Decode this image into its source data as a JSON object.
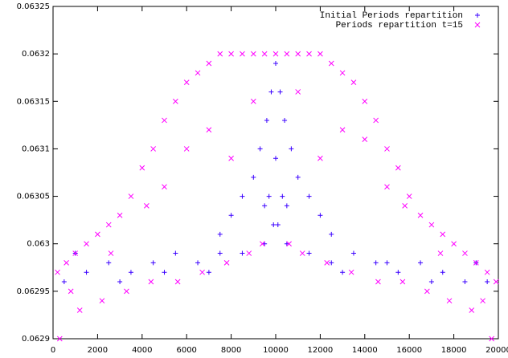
{
  "chart_data": {
    "type": "scatter",
    "xlim": [
      0,
      20000
    ],
    "ylim": [
      0.0629,
      0.06325
    ],
    "xticks": [
      0,
      2000,
      4000,
      6000,
      8000,
      10000,
      12000,
      14000,
      16000,
      18000,
      20000
    ],
    "yticks": [
      0.0629,
      0.06295,
      0.063,
      0.06305,
      0.0631,
      0.06315,
      0.0632,
      0.06325
    ],
    "legend": "top-right",
    "series": [
      {
        "name": "Initial Periods repartition",
        "color": "#3a00ff",
        "marker": "+",
        "x": [
          500,
          1500,
          2500,
          3500,
          4500,
          5500,
          6500,
          7500,
          8500,
          9500,
          10500,
          11500,
          12500,
          13500,
          14500,
          15500,
          16500,
          17500,
          18500,
          19500,
          1000,
          3000,
          5000,
          7000,
          13000,
          15000,
          17000,
          19000,
          7500,
          8000,
          8500,
          9000,
          9300,
          9600,
          9800,
          10000,
          10200,
          10400,
          10700,
          11000,
          11500,
          12000,
          12500,
          9700,
          10300,
          10000,
          9900,
          10100,
          9500,
          10500
        ],
        "values": [
          0.06296,
          0.06297,
          0.06298,
          0.06297,
          0.06298,
          0.06299,
          0.06298,
          0.06299,
          0.06299,
          0.063,
          0.063,
          0.06299,
          0.06298,
          0.06299,
          0.06298,
          0.06297,
          0.06298,
          0.06297,
          0.06296,
          0.06296,
          0.06299,
          0.06296,
          0.06297,
          0.06297,
          0.06297,
          0.06298,
          0.06296,
          0.06298,
          0.06301,
          0.06303,
          0.06305,
          0.06307,
          0.0631,
          0.06313,
          0.06316,
          0.06319,
          0.06316,
          0.06313,
          0.0631,
          0.06307,
          0.06305,
          0.06303,
          0.06301,
          0.06305,
          0.06305,
          0.06309,
          0.06302,
          0.06302,
          0.06304,
          0.06304
        ]
      },
      {
        "name": "Periods repartition t=15",
        "color": "#ff00ff",
        "marker": "x",
        "x": [
          200,
          600,
          1000,
          1500,
          2000,
          2500,
          3000,
          3500,
          4000,
          4500,
          5000,
          5500,
          6000,
          6500,
          7000,
          7500,
          8000,
          8500,
          9000,
          9500,
          10000,
          10500,
          11000,
          11500,
          12000,
          12500,
          13000,
          13500,
          14000,
          14500,
          15000,
          15500,
          16000,
          16500,
          17000,
          17500,
          18000,
          18500,
          19000,
          19500,
          19900,
          300,
          1200,
          2200,
          3300,
          4400,
          5600,
          6700,
          7800,
          8800,
          9400,
          10600,
          11200,
          12300,
          13400,
          14600,
          15700,
          16800,
          17800,
          18800,
          19700,
          800,
          2600,
          4200,
          6000,
          9000,
          11000,
          14000,
          15800,
          17400,
          19300,
          5000,
          7000,
          13000,
          15000,
          8000,
          12000
        ],
        "values": [
          0.06297,
          0.06298,
          0.06299,
          0.063,
          0.06301,
          0.06302,
          0.06303,
          0.06305,
          0.06308,
          0.0631,
          0.06313,
          0.06315,
          0.06317,
          0.06318,
          0.06319,
          0.0632,
          0.0632,
          0.0632,
          0.0632,
          0.0632,
          0.0632,
          0.0632,
          0.0632,
          0.0632,
          0.0632,
          0.06319,
          0.06318,
          0.06317,
          0.06315,
          0.06313,
          0.0631,
          0.06308,
          0.06305,
          0.06303,
          0.06302,
          0.06301,
          0.063,
          0.06299,
          0.06298,
          0.06297,
          0.06296,
          0.0629,
          0.06293,
          0.06294,
          0.06295,
          0.06296,
          0.06296,
          0.06297,
          0.06298,
          0.06299,
          0.063,
          0.063,
          0.06299,
          0.06298,
          0.06297,
          0.06296,
          0.06296,
          0.06295,
          0.06294,
          0.06293,
          0.0629,
          0.06295,
          0.06299,
          0.06304,
          0.0631,
          0.06315,
          0.06316,
          0.06311,
          0.06304,
          0.06299,
          0.06294,
          0.06306,
          0.06312,
          0.06312,
          0.06306,
          0.06309,
          0.06309
        ]
      }
    ]
  }
}
